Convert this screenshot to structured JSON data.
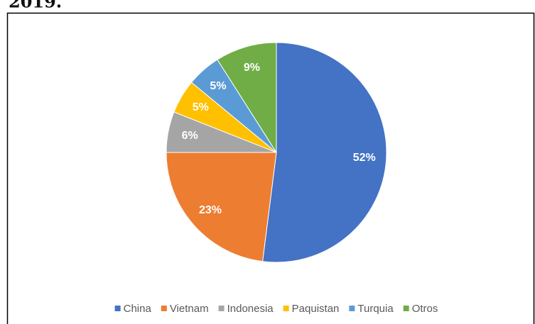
{
  "caption": "2019.",
  "chart_data": {
    "type": "pie",
    "categories": [
      "China",
      "Vietnam",
      "Indonesia",
      "Paquistan",
      "Turquia",
      "Otros"
    ],
    "values": [
      52,
      23,
      6,
      5,
      5,
      9
    ],
    "value_labels": [
      "52%",
      "23%",
      "6%",
      "5%",
      "5%",
      "9%"
    ],
    "colors": [
      "#4472c4",
      "#ed7d31",
      "#a5a5a5",
      "#ffc000",
      "#5b9bd5",
      "#70ad47"
    ],
    "legend": "bottom"
  }
}
